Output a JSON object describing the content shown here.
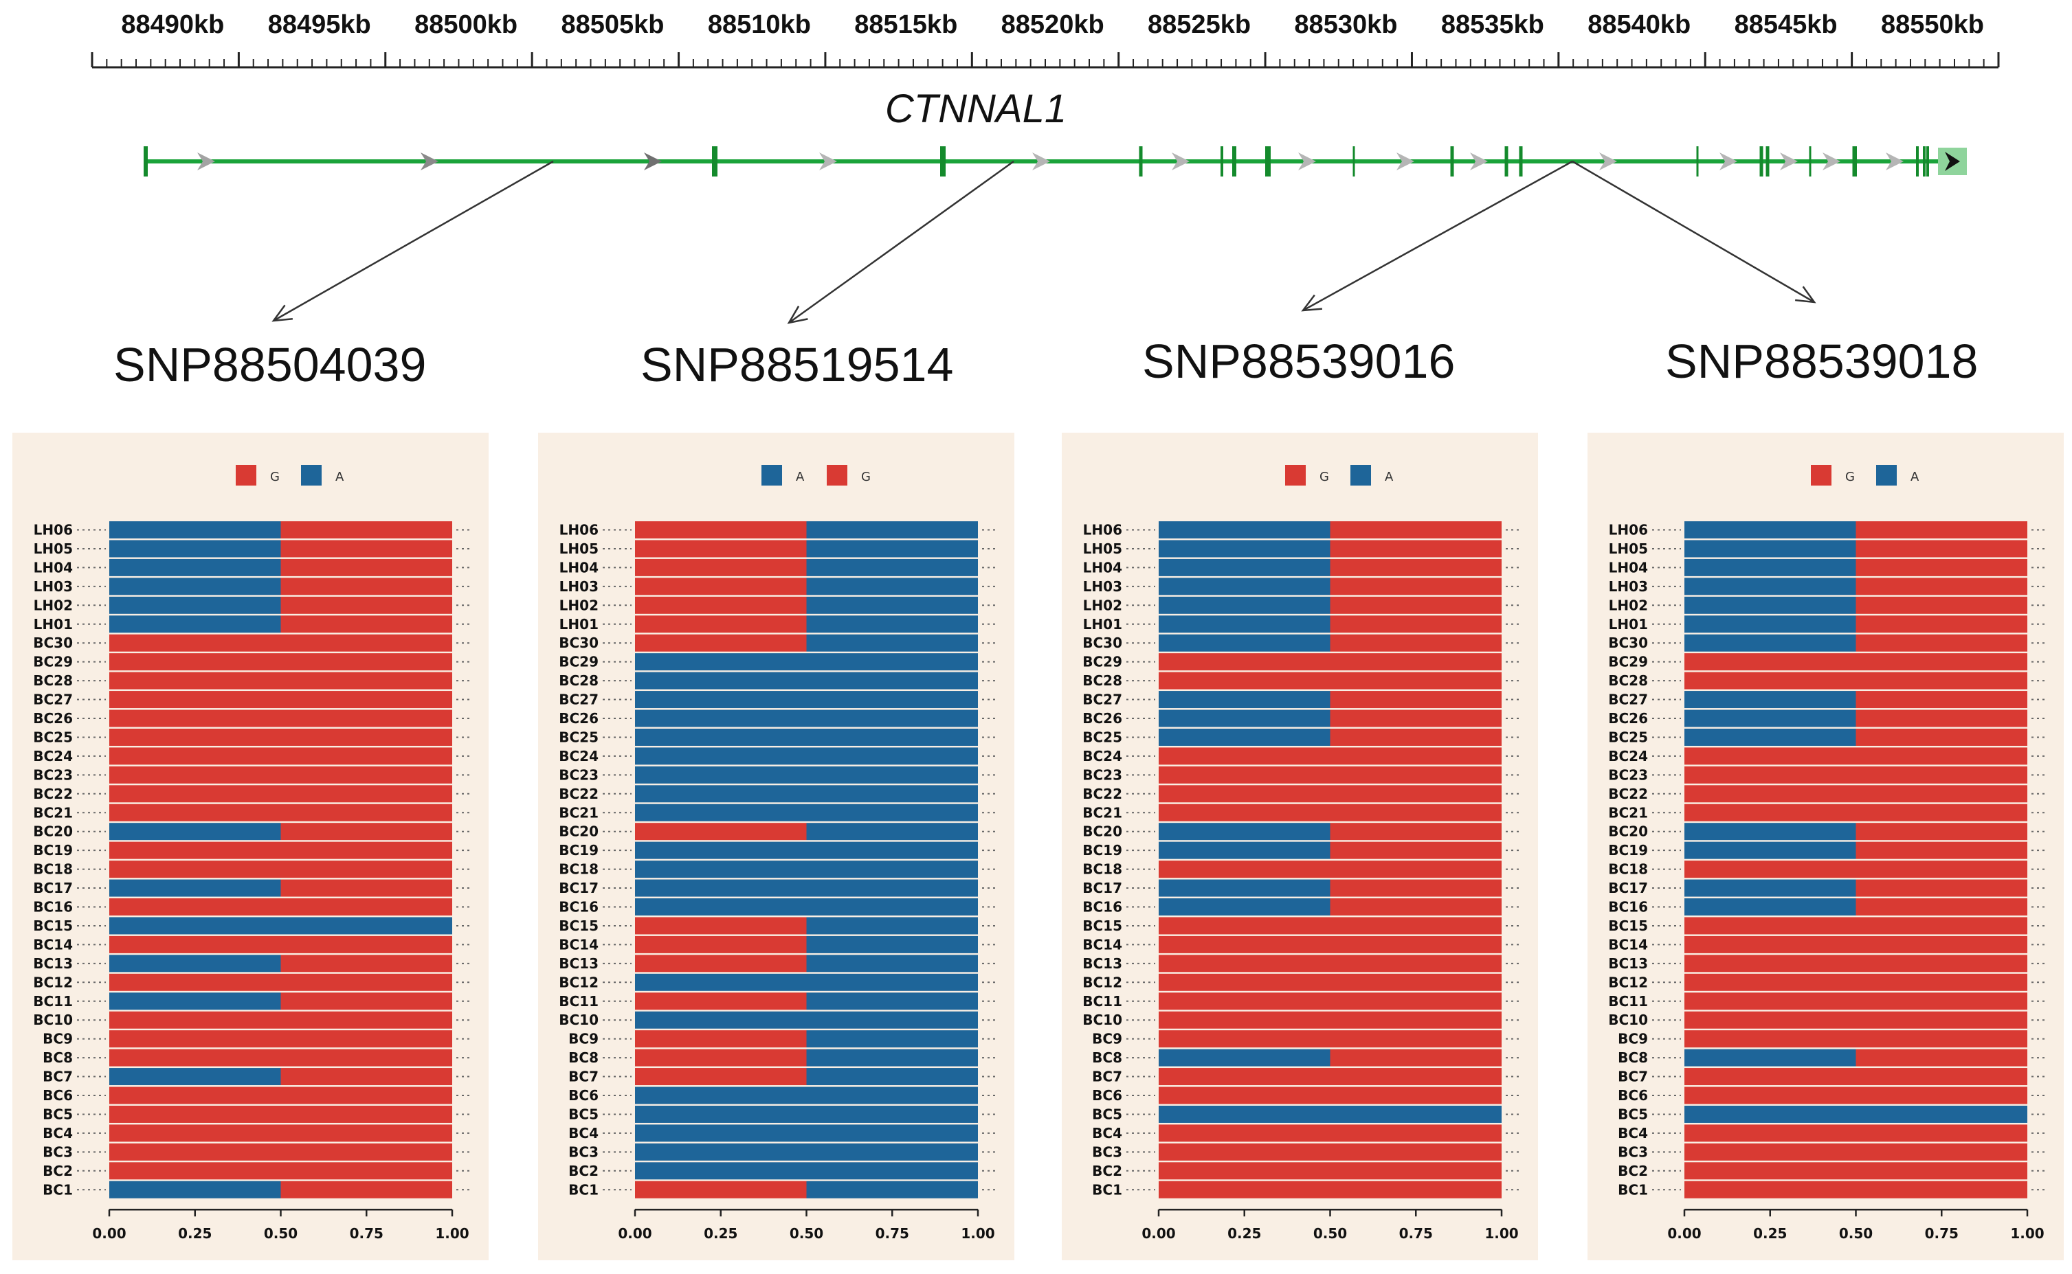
{
  "colors": {
    "G": "#d93a33",
    "A": "#1e6599",
    "gene": "#1aa33a",
    "exon": "#148a2c",
    "axis": "#222222",
    "panel_bg": "#f9efe4"
  },
  "genome": {
    "kb_labels": [
      "88490kb",
      "88495kb",
      "88500kb",
      "88505kb",
      "88510kb",
      "88515kb",
      "88520kb",
      "88525kb",
      "88530kb",
      "88535kb",
      "88540kb",
      "88545kb",
      "88550kb"
    ],
    "gene_name": "CTNNAL1",
    "snp_labels": [
      "SNP88504039",
      "SNP88519514",
      "SNP88539016",
      "SNP88539018"
    ]
  },
  "chart_data": [
    {
      "type": "bar",
      "stacked": true,
      "orientation": "horizontal",
      "title": "SNP88504039",
      "legend": [
        "G",
        "A"
      ],
      "xlim": [
        0,
        1
      ],
      "xticks": [
        "0.00",
        "0.25",
        "0.50",
        "0.75",
        "1.00"
      ],
      "categories": [
        "LH06",
        "LH05",
        "LH04",
        "LH03",
        "LH02",
        "LH01",
        "BC30",
        "BC29",
        "BC28",
        "BC27",
        "BC26",
        "BC25",
        "BC24",
        "BC23",
        "BC22",
        "BC21",
        "BC20",
        "BC19",
        "BC18",
        "BC17",
        "BC16",
        "BC15",
        "BC14",
        "BC13",
        "BC12",
        "BC11",
        "BC10",
        "BC9",
        "BC8",
        "BC7",
        "BC6",
        "BC5",
        "BC4",
        "BC3",
        "BC2",
        "BC1"
      ],
      "series": [
        {
          "name": "A",
          "values": [
            0.5,
            0.5,
            0.5,
            0.5,
            0.5,
            0.5,
            0,
            0,
            0,
            0,
            0,
            0,
            0,
            0,
            0,
            0,
            0.5,
            0,
            0,
            0.5,
            0,
            1,
            0,
            0.5,
            0,
            0.5,
            0,
            0,
            0,
            0.5,
            0,
            0,
            0,
            0,
            0,
            0.5
          ]
        },
        {
          "name": "G",
          "values": [
            0.5,
            0.5,
            0.5,
            0.5,
            0.5,
            0.5,
            1,
            1,
            1,
            1,
            1,
            1,
            1,
            1,
            1,
            1,
            0.5,
            1,
            1,
            0.5,
            1,
            0,
            1,
            0.5,
            1,
            0.5,
            1,
            1,
            1,
            0.5,
            1,
            1,
            1,
            1,
            1,
            0.5
          ]
        }
      ]
    },
    {
      "type": "bar",
      "stacked": true,
      "orientation": "horizontal",
      "title": "SNP88519514",
      "legend": [
        "A",
        "G"
      ],
      "xlim": [
        0,
        1
      ],
      "xticks": [
        "0.00",
        "0.25",
        "0.50",
        "0.75",
        "1.00"
      ],
      "categories": [
        "LH06",
        "LH05",
        "LH04",
        "LH03",
        "LH02",
        "LH01",
        "BC30",
        "BC29",
        "BC28",
        "BC27",
        "BC26",
        "BC25",
        "BC24",
        "BC23",
        "BC22",
        "BC21",
        "BC20",
        "BC19",
        "BC18",
        "BC17",
        "BC16",
        "BC15",
        "BC14",
        "BC13",
        "BC12",
        "BC11",
        "BC10",
        "BC9",
        "BC8",
        "BC7",
        "BC6",
        "BC5",
        "BC4",
        "BC3",
        "BC2",
        "BC1"
      ],
      "series": [
        {
          "name": "G",
          "values": [
            0.5,
            0.5,
            0.5,
            0.5,
            0.5,
            0.5,
            0.5,
            0,
            0,
            0,
            0,
            0,
            0,
            0,
            0,
            0,
            0.5,
            0,
            0,
            0,
            0,
            0.5,
            0.5,
            0.5,
            0,
            0.5,
            0,
            0.5,
            0.5,
            0.5,
            0,
            0,
            0,
            0,
            0,
            0.5
          ]
        },
        {
          "name": "A",
          "values": [
            0.5,
            0.5,
            0.5,
            0.5,
            0.5,
            0.5,
            0.5,
            1,
            1,
            1,
            1,
            1,
            1,
            1,
            1,
            1,
            0.5,
            1,
            1,
            1,
            1,
            0.5,
            0.5,
            0.5,
            1,
            0.5,
            1,
            0.5,
            0.5,
            0.5,
            1,
            1,
            1,
            1,
            1,
            0.5
          ]
        }
      ]
    },
    {
      "type": "bar",
      "stacked": true,
      "orientation": "horizontal",
      "title": "SNP88539016",
      "legend": [
        "G",
        "A"
      ],
      "xlim": [
        0,
        1
      ],
      "xticks": [
        "0.00",
        "0.25",
        "0.50",
        "0.75",
        "1.00"
      ],
      "categories": [
        "LH06",
        "LH05",
        "LH04",
        "LH03",
        "LH02",
        "LH01",
        "BC30",
        "BC29",
        "BC28",
        "BC27",
        "BC26",
        "BC25",
        "BC24",
        "BC23",
        "BC22",
        "BC21",
        "BC20",
        "BC19",
        "BC18",
        "BC17",
        "BC16",
        "BC15",
        "BC14",
        "BC13",
        "BC12",
        "BC11",
        "BC10",
        "BC9",
        "BC8",
        "BC7",
        "BC6",
        "BC5",
        "BC4",
        "BC3",
        "BC2",
        "BC1"
      ],
      "series": [
        {
          "name": "A",
          "values": [
            0.5,
            0.5,
            0.5,
            0.5,
            0.5,
            0.5,
            0.5,
            0,
            0,
            0.5,
            0.5,
            0.5,
            0,
            0,
            0,
            0,
            0.5,
            0.5,
            0,
            0.5,
            0.5,
            0,
            0,
            0,
            0,
            0,
            0,
            0,
            0.5,
            0,
            0,
            1,
            0,
            0,
            0,
            0
          ]
        },
        {
          "name": "G",
          "values": [
            0.5,
            0.5,
            0.5,
            0.5,
            0.5,
            0.5,
            0.5,
            1,
            1,
            0.5,
            0.5,
            0.5,
            1,
            1,
            1,
            1,
            0.5,
            0.5,
            1,
            0.5,
            0.5,
            1,
            1,
            1,
            1,
            1,
            1,
            1,
            0.5,
            1,
            1,
            0,
            1,
            1,
            1,
            1
          ]
        }
      ]
    },
    {
      "type": "bar",
      "stacked": true,
      "orientation": "horizontal",
      "title": "SNP88539018",
      "legend": [
        "G",
        "A"
      ],
      "xlim": [
        0,
        1
      ],
      "xticks": [
        "0.00",
        "0.25",
        "0.50",
        "0.75",
        "1.00"
      ],
      "categories": [
        "LH06",
        "LH05",
        "LH04",
        "LH03",
        "LH02",
        "LH01",
        "BC30",
        "BC29",
        "BC28",
        "BC27",
        "BC26",
        "BC25",
        "BC24",
        "BC23",
        "BC22",
        "BC21",
        "BC20",
        "BC19",
        "BC18",
        "BC17",
        "BC16",
        "BC15",
        "BC14",
        "BC13",
        "BC12",
        "BC11",
        "BC10",
        "BC9",
        "BC8",
        "BC7",
        "BC6",
        "BC5",
        "BC4",
        "BC3",
        "BC2",
        "BC1"
      ],
      "series": [
        {
          "name": "A",
          "values": [
            0.5,
            0.5,
            0.5,
            0.5,
            0.5,
            0.5,
            0.5,
            0,
            0,
            0.5,
            0.5,
            0.5,
            0,
            0,
            0,
            0,
            0.5,
            0.5,
            0,
            0.5,
            0.5,
            0,
            0,
            0,
            0,
            0,
            0,
            0,
            0.5,
            0,
            0,
            1,
            0,
            0,
            0,
            0
          ]
        },
        {
          "name": "G",
          "values": [
            0.5,
            0.5,
            0.5,
            0.5,
            0.5,
            0.5,
            0.5,
            1,
            1,
            0.5,
            0.5,
            0.5,
            1,
            1,
            1,
            1,
            0.5,
            0.5,
            1,
            0.5,
            0.5,
            1,
            1,
            1,
            1,
            1,
            1,
            1,
            0.5,
            1,
            1,
            0,
            1,
            1,
            1,
            1
          ]
        }
      ]
    }
  ]
}
